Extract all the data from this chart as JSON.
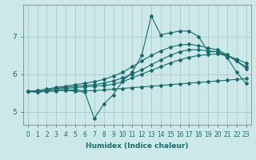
{
  "xlabel": "Humidex (Indice chaleur)",
  "bg_color": "#cce8e8",
  "grid_color": "#aacccc",
  "line_color": "#1a6b6b",
  "xlim": [
    -0.5,
    23.5
  ],
  "ylim": [
    4.65,
    7.85
  ],
  "xticks": [
    0,
    1,
    2,
    3,
    4,
    5,
    6,
    7,
    8,
    9,
    10,
    11,
    12,
    13,
    14,
    15,
    16,
    17,
    18,
    19,
    20,
    21,
    22,
    23
  ],
  "yticks": [
    5,
    6,
    7
  ],
  "series": [
    [
      5.55,
      5.52,
      5.55,
      5.55,
      5.57,
      5.55,
      5.52,
      4.82,
      5.2,
      5.45,
      5.82,
      6.05,
      6.5,
      7.55,
      7.05,
      7.1,
      7.15,
      7.15,
      7.0,
      6.6,
      6.6,
      6.45,
      6.05,
      5.75
    ],
    [
      5.54,
      5.52,
      5.54,
      5.56,
      5.58,
      5.58,
      5.56,
      5.56,
      5.58,
      5.6,
      5.62,
      5.64,
      5.66,
      5.68,
      5.7,
      5.72,
      5.74,
      5.76,
      5.78,
      5.8,
      5.82,
      5.84,
      5.86,
      5.88
    ],
    [
      5.54,
      5.56,
      5.58,
      5.6,
      5.62,
      5.64,
      5.66,
      5.68,
      5.7,
      5.73,
      5.8,
      5.9,
      6.0,
      6.1,
      6.2,
      6.3,
      6.38,
      6.45,
      6.5,
      6.52,
      6.54,
      6.5,
      6.4,
      6.3
    ],
    [
      5.54,
      5.56,
      5.58,
      5.62,
      5.65,
      5.68,
      5.7,
      5.72,
      5.76,
      5.82,
      5.9,
      6.0,
      6.12,
      6.25,
      6.38,
      6.5,
      6.6,
      6.65,
      6.65,
      6.62,
      6.6,
      6.5,
      6.35,
      6.2
    ],
    [
      5.54,
      5.56,
      5.6,
      5.65,
      5.68,
      5.72,
      5.76,
      5.8,
      5.86,
      5.95,
      6.05,
      6.2,
      6.35,
      6.5,
      6.62,
      6.72,
      6.78,
      6.8,
      6.76,
      6.7,
      6.65,
      6.52,
      6.35,
      6.15
    ]
  ]
}
